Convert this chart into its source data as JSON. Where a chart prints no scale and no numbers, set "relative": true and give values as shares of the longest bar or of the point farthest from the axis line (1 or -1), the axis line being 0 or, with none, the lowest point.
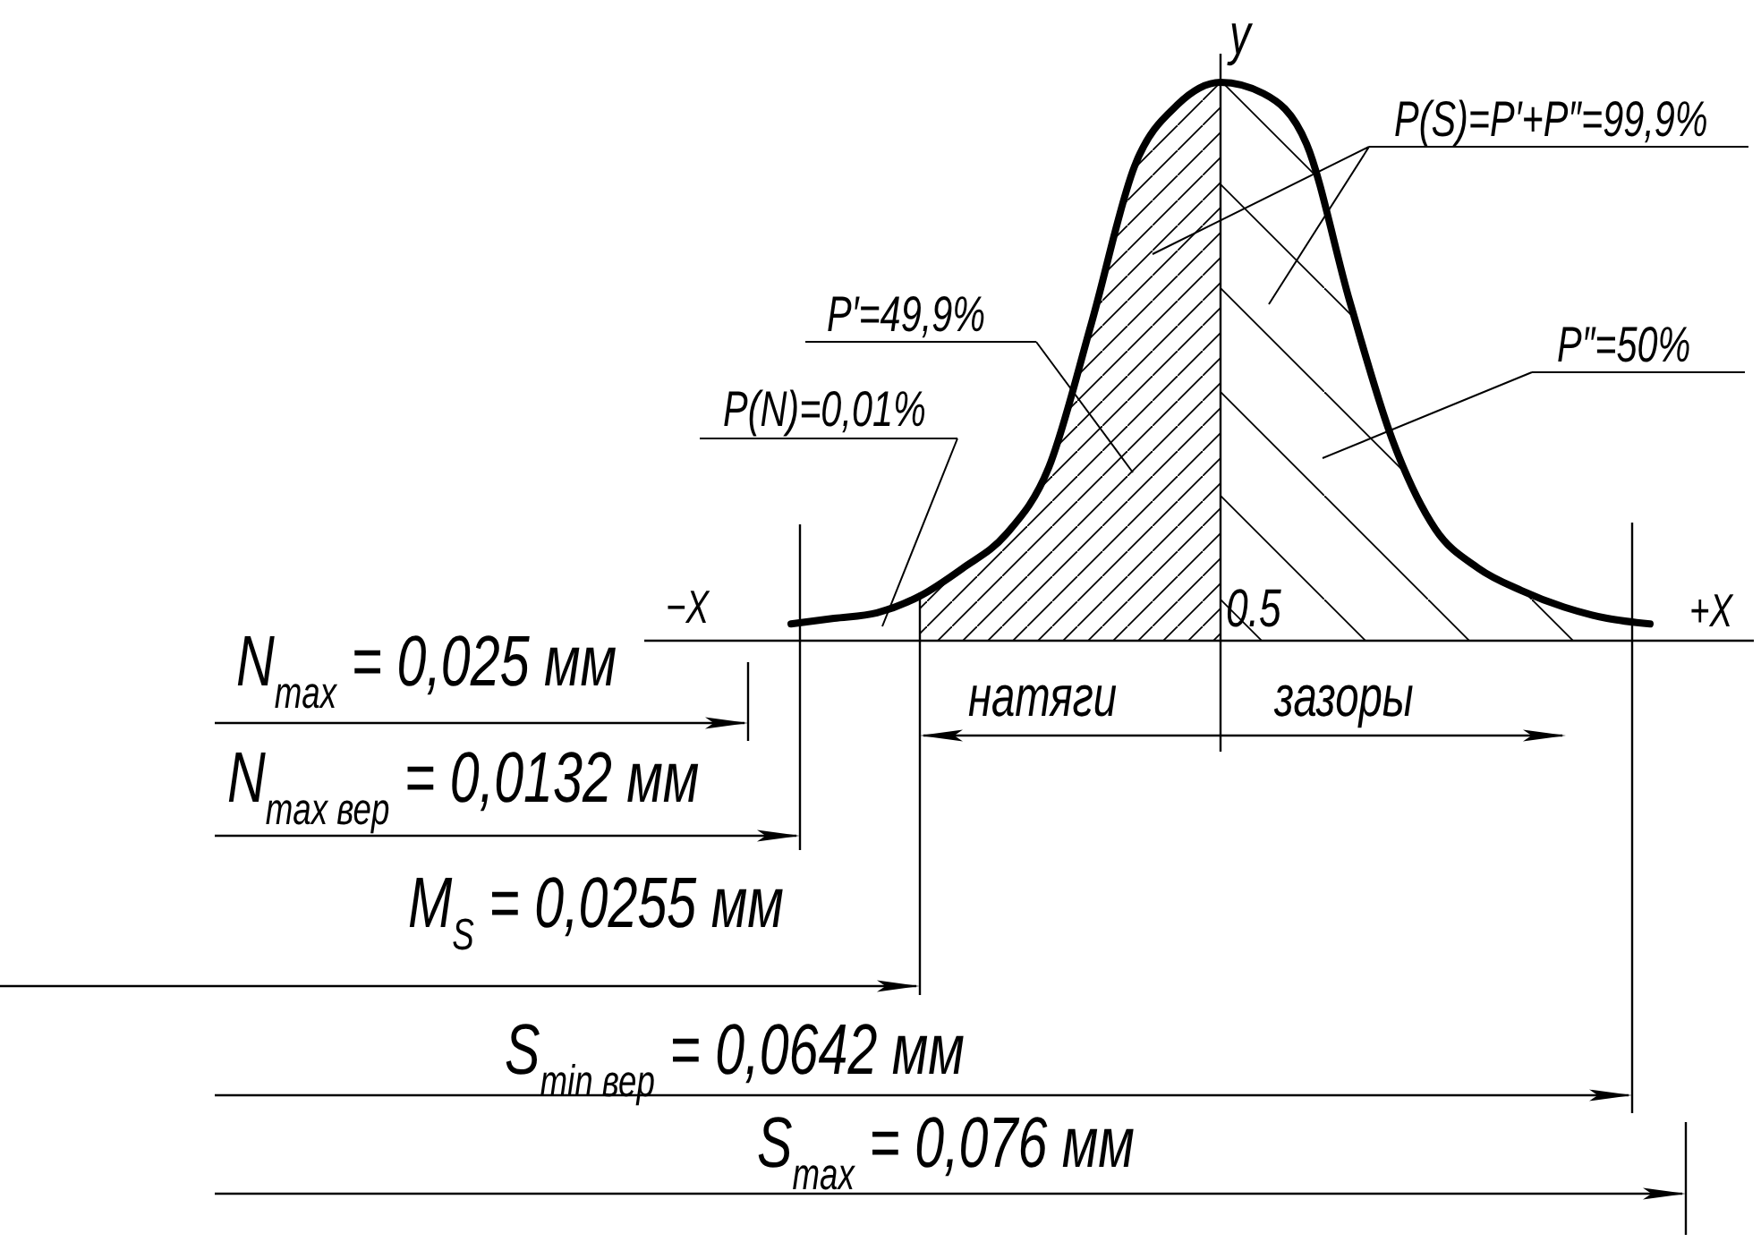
{
  "chart_data": {
    "type": "line",
    "relative": true,
    "ylabel": "y",
    "categories": [
      null,
      null,
      null,
      null,
      null,
      null,
      null,
      null,
      null,
      null,
      null,
      null,
      null,
      null,
      null,
      null,
      null,
      null,
      null,
      null,
      null
    ],
    "series": [
      {
        "color": "#000000",
        "values": [
          0.03,
          0.04,
          0.05,
          0.08,
          0.13,
          0.19,
          0.31,
          0.57,
          0.85,
          0.96,
          1,
          0.98,
          0.89,
          0.61,
          0.36,
          0.2,
          0.13,
          0.09,
          0.06,
          0.04,
          0.03
        ]
      },
      {
        "type": "area",
        "color": "#000000",
        "values": [
          null,
          null,
          null,
          0.08,
          0.13,
          0.19,
          0.31,
          0.57,
          0.85,
          0.96,
          1,
          null,
          null,
          null,
          null,
          null,
          null,
          null,
          null,
          null,
          null
        ]
      },
      {
        "type": "area",
        "color": "#000000",
        "values": [
          null,
          null,
          null,
          null,
          null,
          null,
          null,
          null,
          null,
          null,
          1,
          0.98,
          0.89,
          0.61,
          0.36,
          0.2,
          0.13,
          0.09,
          0.06,
          0.04,
          0.03
        ]
      }
    ],
    "annotations": [
      "−X",
      "+X",
      "0.5",
      "P(S)=P′+P″=99,9%",
      "P′=49,9%",
      "P″=50%",
      "P(N)=0,01%",
      "натяги",
      "зазоры",
      "N$_{max}$ = 0,025 мм",
      "N$_{max вер}$ = 0,0132 мм",
      "M$_{S}$ = 0,0255 мм",
      "S$_{min вер}$ = 0,0642 мм",
      "S$_{max}$ = 0,076 мм"
    ]
  }
}
